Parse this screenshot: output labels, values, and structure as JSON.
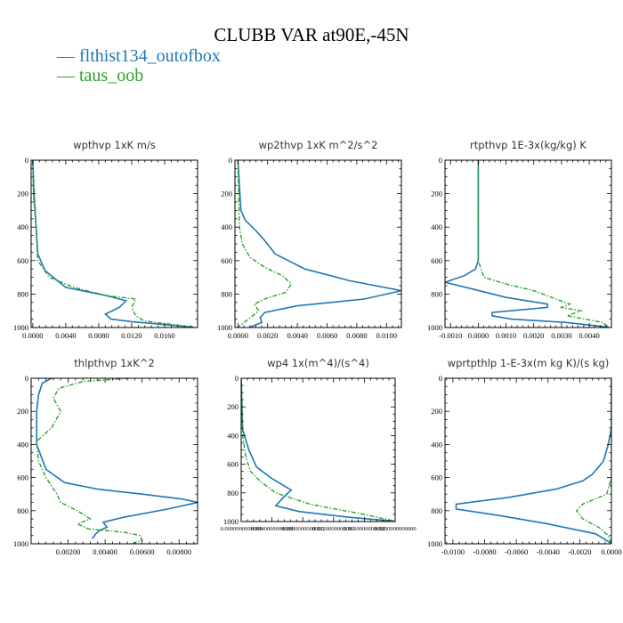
{
  "title": "CLUBB VAR at90E,-45N",
  "legend": [
    {
      "label": "— flthist134_outofbox",
      "color": "#1f77b4"
    },
    {
      "label": "— taus_oob",
      "color": "#2ca02c"
    }
  ],
  "colors": {
    "series_a": "#1f77b4",
    "series_b": "#2ca02c"
  },
  "chart_data": [
    {
      "type": "line",
      "title": "wpthvp 1xK m/s",
      "xlim": [
        -0.0002,
        0.02
      ],
      "ylim": [
        1000,
        0
      ],
      "xticks": [
        0.0,
        0.004,
        0.008,
        0.012,
        0.016
      ],
      "xtick_labels": [
        "0.0000",
        "0.0040",
        "0.0080",
        "0.0120",
        "0.0160"
      ],
      "yticks": [
        0,
        200,
        400,
        600,
        800,
        1000
      ],
      "ytick_labels": [
        "0",
        "200",
        "400",
        "600",
        "800",
        "1000"
      ],
      "series": [
        {
          "name": "flthist134_outofbox",
          "x": [
            0.0,
            0.0001,
            0.0004,
            0.0006,
            0.0015,
            0.004,
            0.009,
            0.0113,
            0.0105,
            0.0088,
            0.0095,
            0.012,
            0.0195
          ],
          "y": [
            0,
            200,
            400,
            560,
            660,
            760,
            810,
            840,
            880,
            920,
            950,
            965,
            998
          ]
        },
        {
          "name": "taus_oob",
          "x": [
            0.0,
            0.0002,
            0.0004,
            0.0006,
            0.002,
            0.005,
            0.009,
            0.0125,
            0.012,
            0.0125,
            0.0135,
            0.0195
          ],
          "y": [
            0,
            200,
            400,
            600,
            700,
            760,
            810,
            830,
            880,
            930,
            960,
            998
          ]
        }
      ]
    },
    {
      "type": "line",
      "title": "wp2thvp 1xK m^2/s^2",
      "xlim": [
        -0.0002,
        0.011
      ],
      "ylim": [
        1000,
        0
      ],
      "xticks": [
        0.0,
        0.002,
        0.004,
        0.006,
        0.008,
        0.01
      ],
      "xtick_labels": [
        "0.0000",
        "0.0020",
        "0.0040",
        "0.0060",
        "0.0080",
        "0.0100"
      ],
      "yticks": [
        0,
        200,
        400,
        600,
        800,
        1000
      ],
      "ytick_labels": [
        "0",
        "200",
        "400",
        "600",
        "800",
        "1000"
      ],
      "series": [
        {
          "name": "flthist134_outofbox",
          "x": [
            0.0,
            0.0002,
            0.0005,
            0.0012,
            0.0018,
            0.0025,
            0.0045,
            0.0075,
            0.011,
            0.0085,
            0.004,
            0.0018,
            0.0015,
            0.0016,
            0.0008
          ],
          "y": [
            0,
            300,
            360,
            420,
            480,
            560,
            650,
            720,
            780,
            830,
            870,
            910,
            940,
            970,
            998
          ]
        },
        {
          "name": "taus_oob",
          "x": [
            0.0,
            0.0001,
            0.0003,
            0.0008,
            0.0018,
            0.003,
            0.0036,
            0.0032,
            0.0018,
            0.0011,
            0.0014,
            0.001,
            0.0004,
            0.0
          ],
          "y": [
            0,
            400,
            500,
            580,
            640,
            690,
            740,
            790,
            830,
            860,
            900,
            930,
            970,
            998
          ]
        }
      ]
    },
    {
      "type": "line",
      "title": "rtpthvp 1E-3x(kg/kg) K",
      "xlim": [
        -0.0012,
        0.0048
      ],
      "ylim": [
        1000,
        0
      ],
      "xticks": [
        -0.001,
        0.0,
        0.001,
        0.002,
        0.003,
        0.004
      ],
      "xtick_labels": [
        "-0.0010",
        "0.0000",
        "0.0010",
        "0.0020",
        "0.0030",
        "0.0040"
      ],
      "yticks": [
        0,
        200,
        400,
        600,
        800,
        1000
      ],
      "ytick_labels": [
        "0",
        "200",
        "400",
        "600",
        "800",
        "1000"
      ],
      "series": [
        {
          "name": "flthist134_outofbox",
          "x": [
            0.0,
            0.0,
            0.0,
            -0.0001,
            -0.0005,
            -0.0012,
            -0.0002,
            0.001,
            0.0025,
            0.0025,
            0.0005,
            0.0005,
            0.0012,
            0.0032,
            0.0047
          ],
          "y": [
            0,
            300,
            600,
            650,
            690,
            730,
            770,
            820,
            860,
            880,
            910,
            930,
            950,
            970,
            998
          ]
        },
        {
          "name": "taus_oob",
          "x": [
            0.0,
            0.0,
            0.0,
            0.0002,
            0.001,
            0.002,
            0.0028,
            0.0033,
            0.003,
            0.0037,
            0.0032,
            0.0045,
            0.0047
          ],
          "y": [
            0,
            300,
            600,
            700,
            740,
            780,
            830,
            860,
            880,
            900,
            930,
            970,
            998
          ]
        }
      ]
    },
    {
      "type": "line",
      "title": "thlpthvp 1xK^2",
      "xlim": [
        0.0,
        0.009
      ],
      "ylim": [
        1000,
        0
      ],
      "xticks": [
        0.002,
        0.004,
        0.006,
        0.008
      ],
      "xtick_labels": [
        "0.00200",
        "0.00400",
        "0.00600",
        "0.00800"
      ],
      "yticks": [
        0,
        200,
        400,
        600,
        800,
        1000
      ],
      "ytick_labels": [
        "0",
        "200",
        "400",
        "600",
        "800",
        "1000"
      ],
      "series": [
        {
          "name": "flthist134_outofbox",
          "x": [
            0.0011,
            0.0006,
            0.0004,
            0.0003,
            0.0003,
            0.0003,
            0.0008,
            0.0018,
            0.0036,
            0.006,
            0.0082,
            0.009,
            0.0074,
            0.005,
            0.0039,
            0.0041,
            0.0037,
            0.0035,
            0.0033
          ],
          "y": [
            0,
            30,
            100,
            200,
            300,
            400,
            550,
            630,
            670,
            700,
            730,
            750,
            790,
            840,
            870,
            900,
            920,
            940,
            970
          ]
        },
        {
          "name": "taus_oob",
          "x": [
            0.0053,
            0.0028,
            0.0015,
            0.0012,
            0.0016,
            0.0011,
            0.0003,
            0.0004,
            0.0008,
            0.0014,
            0.0016,
            0.0025,
            0.0032,
            0.0025,
            0.0031,
            0.005,
            0.0059,
            0.006,
            0.0055
          ],
          "y": [
            0,
            20,
            60,
            120,
            200,
            300,
            380,
            500,
            600,
            700,
            750,
            800,
            850,
            880,
            910,
            930,
            950,
            980,
            998
          ]
        }
      ]
    },
    {
      "type": "line",
      "title": "wp4 1x(m^4)/(s^4)",
      "xlim": [
        0.0,
        0.02
      ],
      "ylim": [
        1000,
        0
      ],
      "xticks": [
        0.0,
        0.004,
        0.008,
        0.012,
        0.016,
        0.02
      ],
      "xtick_labels": [
        "0.0000000000000",
        "0.0040000000000",
        "0.0080000000000",
        "0.0120000000000",
        "0.0160000000000",
        "0.0200000000000"
      ],
      "yticks": [
        0,
        200,
        400,
        600,
        800,
        1000
      ],
      "ytick_labels": [
        "0",
        "200",
        "400",
        "600",
        "800",
        "1000"
      ],
      "series": [
        {
          "name": "flthist134_outofbox",
          "x": [
            0.0,
            0.0002,
            0.001,
            0.002,
            0.004,
            0.0065,
            0.0055,
            0.0045,
            0.0075,
            0.014,
            0.02
          ],
          "y": [
            0,
            360,
            500,
            620,
            700,
            780,
            830,
            890,
            930,
            970,
            998
          ]
        },
        {
          "name": "taus_oob",
          "x": [
            0.0,
            0.0002,
            0.0006,
            0.0012,
            0.0025,
            0.0045,
            0.009,
            0.016,
            0.02
          ],
          "y": [
            0,
            400,
            550,
            650,
            720,
            800,
            880,
            950,
            998
          ]
        }
      ]
    },
    {
      "type": "line",
      "title": "wprtpthlp 1-E-3x(m kg K)/(s kg)",
      "xlim": [
        -0.0105,
        0.0
      ],
      "ylim": [
        1000,
        0
      ],
      "xticks": [
        -0.01,
        -0.008,
        -0.006,
        -0.004,
        -0.002,
        0.0
      ],
      "xtick_labels": [
        "-0.0100",
        "-0.0080",
        "-0.0060",
        "-0.0040",
        "-0.0020",
        "0.0000"
      ],
      "yticks": [
        0,
        200,
        400,
        600,
        800,
        1000
      ],
      "ytick_labels": [
        "0",
        "200",
        "400",
        "600",
        "800",
        "1000"
      ],
      "series": [
        {
          "name": "flthist134_outofbox",
          "x": [
            0.0,
            0.0,
            -0.0002,
            -0.0005,
            -0.0012,
            -0.0018,
            -0.0035,
            -0.0065,
            -0.0098,
            -0.0098,
            -0.007,
            -0.004,
            -0.001,
            0.0
          ],
          "y": [
            0,
            300,
            400,
            500,
            580,
            620,
            670,
            720,
            760,
            790,
            830,
            880,
            940,
            998
          ]
        },
        {
          "name": "taus_oob",
          "x": [
            0.0,
            0.0,
            0.0,
            -0.0003,
            -0.0018,
            -0.0022,
            -0.0018,
            -0.0008,
            -0.0002,
            0.0
          ],
          "y": [
            0,
            300,
            600,
            700,
            760,
            800,
            850,
            900,
            950,
            998
          ]
        }
      ]
    }
  ]
}
